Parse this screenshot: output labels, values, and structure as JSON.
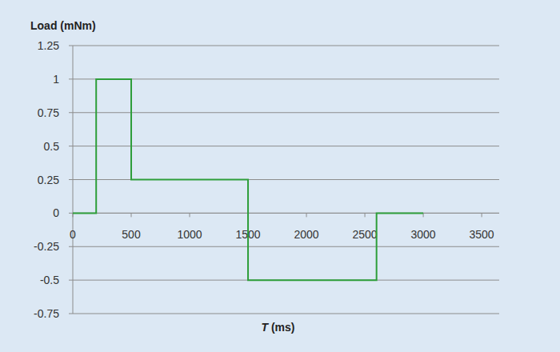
{
  "chart_data": {
    "type": "line",
    "y_label": "Load (mNm)",
    "x_label": "T (ms)",
    "x": [
      0,
      200,
      200,
      500,
      500,
      1500,
      1500,
      2600,
      2600,
      3000
    ],
    "values": [
      0,
      0,
      1,
      1,
      0.25,
      0.25,
      -0.5,
      -0.5,
      0,
      0
    ],
    "color": "#2e9e3a",
    "xlim": [
      0,
      3650
    ],
    "ylim": [
      -0.75,
      1.25
    ],
    "xticks": [
      0,
      500,
      1000,
      1500,
      2000,
      2500,
      3000,
      3500
    ],
    "yticks": [
      -0.75,
      -0.5,
      -0.25,
      0,
      0.25,
      0.5,
      0.75,
      1,
      1.25
    ],
    "grid": true
  }
}
